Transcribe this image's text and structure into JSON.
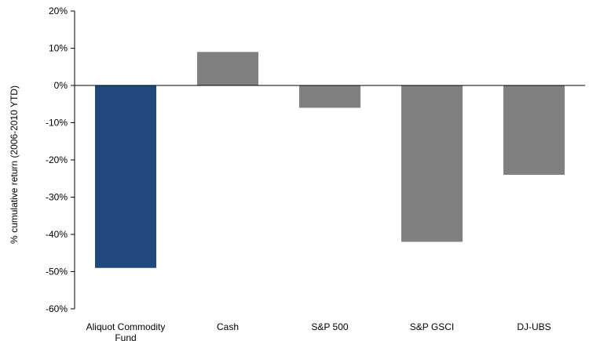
{
  "chart_data": {
    "type": "bar",
    "categories": [
      "Aliquot Commodity Fund",
      "Cash",
      "S&P 500",
      "S&P GSCI",
      "DJ-UBS"
    ],
    "category_label_lines": [
      [
        "Aliquot Commodity",
        "Fund"
      ],
      [
        "Cash"
      ],
      [
        "S&P 500"
      ],
      [
        "S&P GSCI"
      ],
      [
        "DJ-UBS"
      ]
    ],
    "values": [
      -49,
      9,
      -6,
      -42,
      -24
    ],
    "bar_colors": [
      "#1f497d",
      "#808080",
      "#808080",
      "#808080",
      "#808080"
    ],
    "ylabel": "% cumulative return (2006-2010 YTD)",
    "ylim": [
      -60,
      20
    ],
    "yticks": [
      20,
      10,
      0,
      -10,
      -20,
      -30,
      -40,
      -50,
      -60
    ],
    "ytick_labels": [
      "20%",
      "10%",
      "0%",
      "-10%",
      "-20%",
      "-30%",
      "-40%",
      "-50%",
      "-60%"
    ],
    "grid": false,
    "legend": "none"
  }
}
